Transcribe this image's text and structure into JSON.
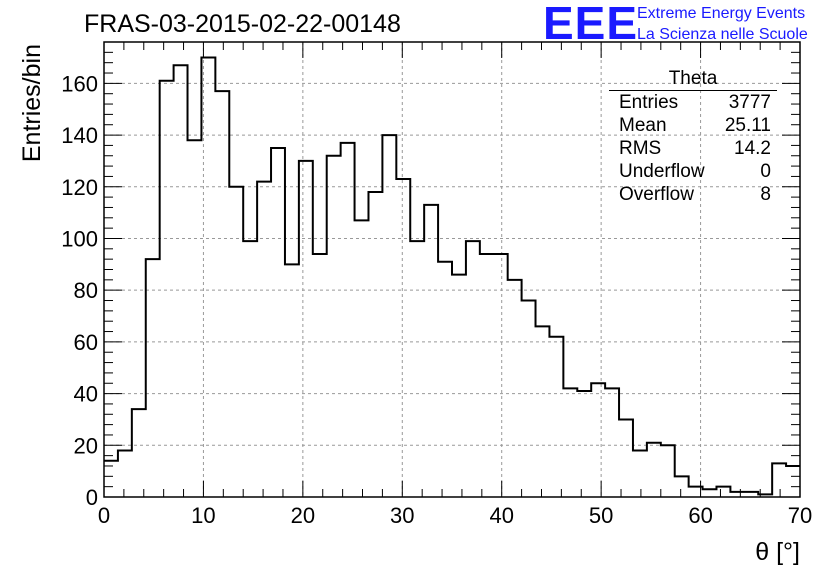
{
  "title": "FRAS-03-2015-02-22-00148",
  "logo": {
    "mark": "EEE",
    "line1": "Extreme Energy Events",
    "line2": "La Scienza nelle Scuole"
  },
  "stats": {
    "name": "Theta",
    "rows": [
      {
        "label": "Entries",
        "value": "3777"
      },
      {
        "label": "Mean",
        "value": "25.11"
      },
      {
        "label": "RMS",
        "value": "14.2"
      },
      {
        "label": "Underflow",
        "value": "0"
      },
      {
        "label": "Overflow",
        "value": "8"
      }
    ]
  },
  "colors": {
    "line": "#000000",
    "grid": "#999999",
    "logo": "#1a1aff"
  },
  "chart_data": {
    "type": "bar",
    "style": "step histogram",
    "xlabel": "θ [°]",
    "ylabel": "Entries/bin",
    "xlim": [
      0,
      70
    ],
    "ylim": [
      0,
      176
    ],
    "grid": true,
    "bin_width": 1.4,
    "bin_start": 0,
    "x_ticks": [
      0,
      10,
      20,
      30,
      40,
      50,
      60,
      70
    ],
    "y_ticks": [
      0,
      20,
      40,
      60,
      80,
      100,
      120,
      140,
      160
    ],
    "values": [
      14,
      18,
      34,
      92,
      161,
      167,
      138,
      170,
      157,
      120,
      99,
      122,
      135,
      90,
      130,
      94,
      132,
      137,
      107,
      118,
      140,
      123,
      99,
      113,
      91,
      86,
      99,
      94,
      94,
      84,
      76,
      66,
      62,
      42,
      41,
      44,
      42,
      30,
      18,
      21,
      20,
      8,
      4,
      3,
      4,
      2,
      2,
      1,
      13,
      12
    ]
  }
}
